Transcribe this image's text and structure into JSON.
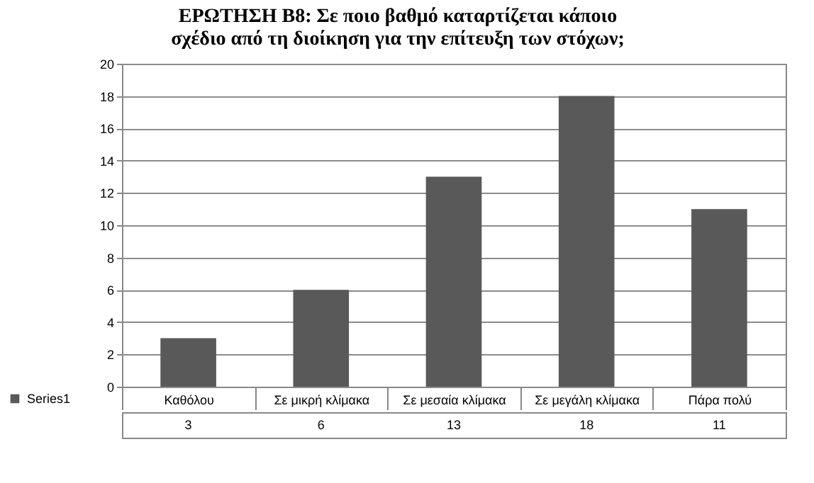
{
  "chart_data": {
    "type": "bar",
    "title": "ΕΡΩΤΗΣΗ Β8: Σε ποιο βαθμό καταρτίζεται κάποιο σχέδιο από τη διοίκηση για την επίτευξη των στόχων;",
    "categories": [
      "Καθόλου",
      "Σε μικρή κλίμακα",
      "Σε μεσαία κλίμακα",
      "Σε μεγάλη  κλίμακα",
      "Πάρα πολύ"
    ],
    "series": [
      {
        "name": "Series1",
        "color": "#595959",
        "values": [
          3,
          6,
          13,
          18,
          11
        ]
      }
    ],
    "ylim": [
      0,
      20
    ],
    "yticks": [
      0,
      2,
      4,
      6,
      8,
      10,
      12,
      14,
      16,
      18,
      20
    ],
    "grid": "y",
    "legend": "bottom",
    "data_labels": true
  }
}
